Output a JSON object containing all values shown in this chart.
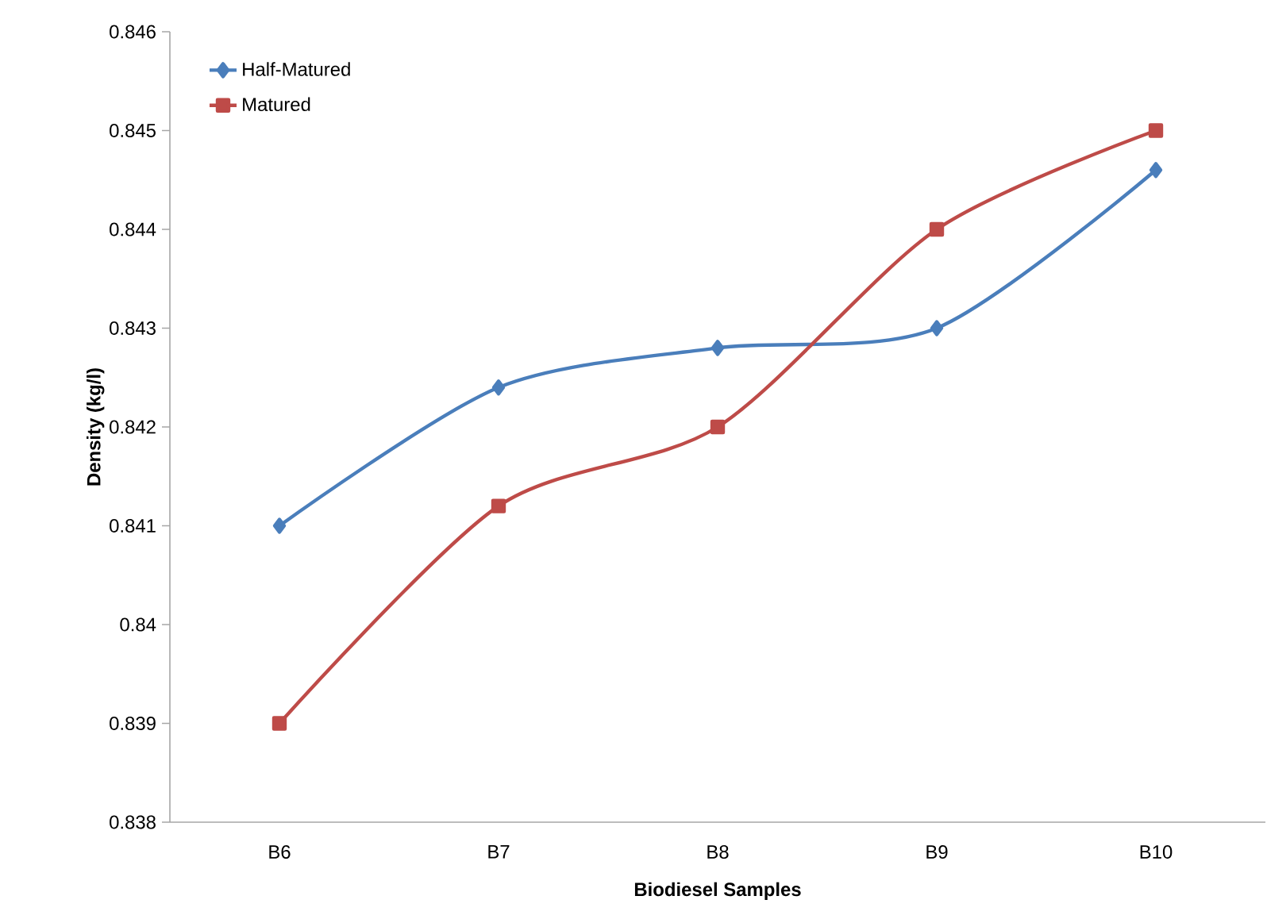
{
  "chart_data": {
    "type": "line",
    "xlabel": "Biodiesel Samples",
    "ylabel": "Density (kg/l)",
    "categories": [
      "B6",
      "B7",
      "B8",
      "B9",
      "B10"
    ],
    "series": [
      {
        "name": "Half-Matured",
        "color": "#4a7ebb",
        "marker": "diamond",
        "values": [
          0.841,
          0.8424,
          0.8428,
          0.843,
          0.8446
        ]
      },
      {
        "name": "Matured",
        "color": "#be4b48",
        "marker": "square",
        "values": [
          0.839,
          0.8412,
          0.842,
          0.844,
          0.845
        ]
      }
    ],
    "ylim": [
      0.838,
      0.846
    ],
    "yticks": [
      0.838,
      0.839,
      0.84,
      0.841,
      0.842,
      0.843,
      0.844,
      0.845,
      0.846
    ],
    "grid": false,
    "legend": "top left"
  }
}
